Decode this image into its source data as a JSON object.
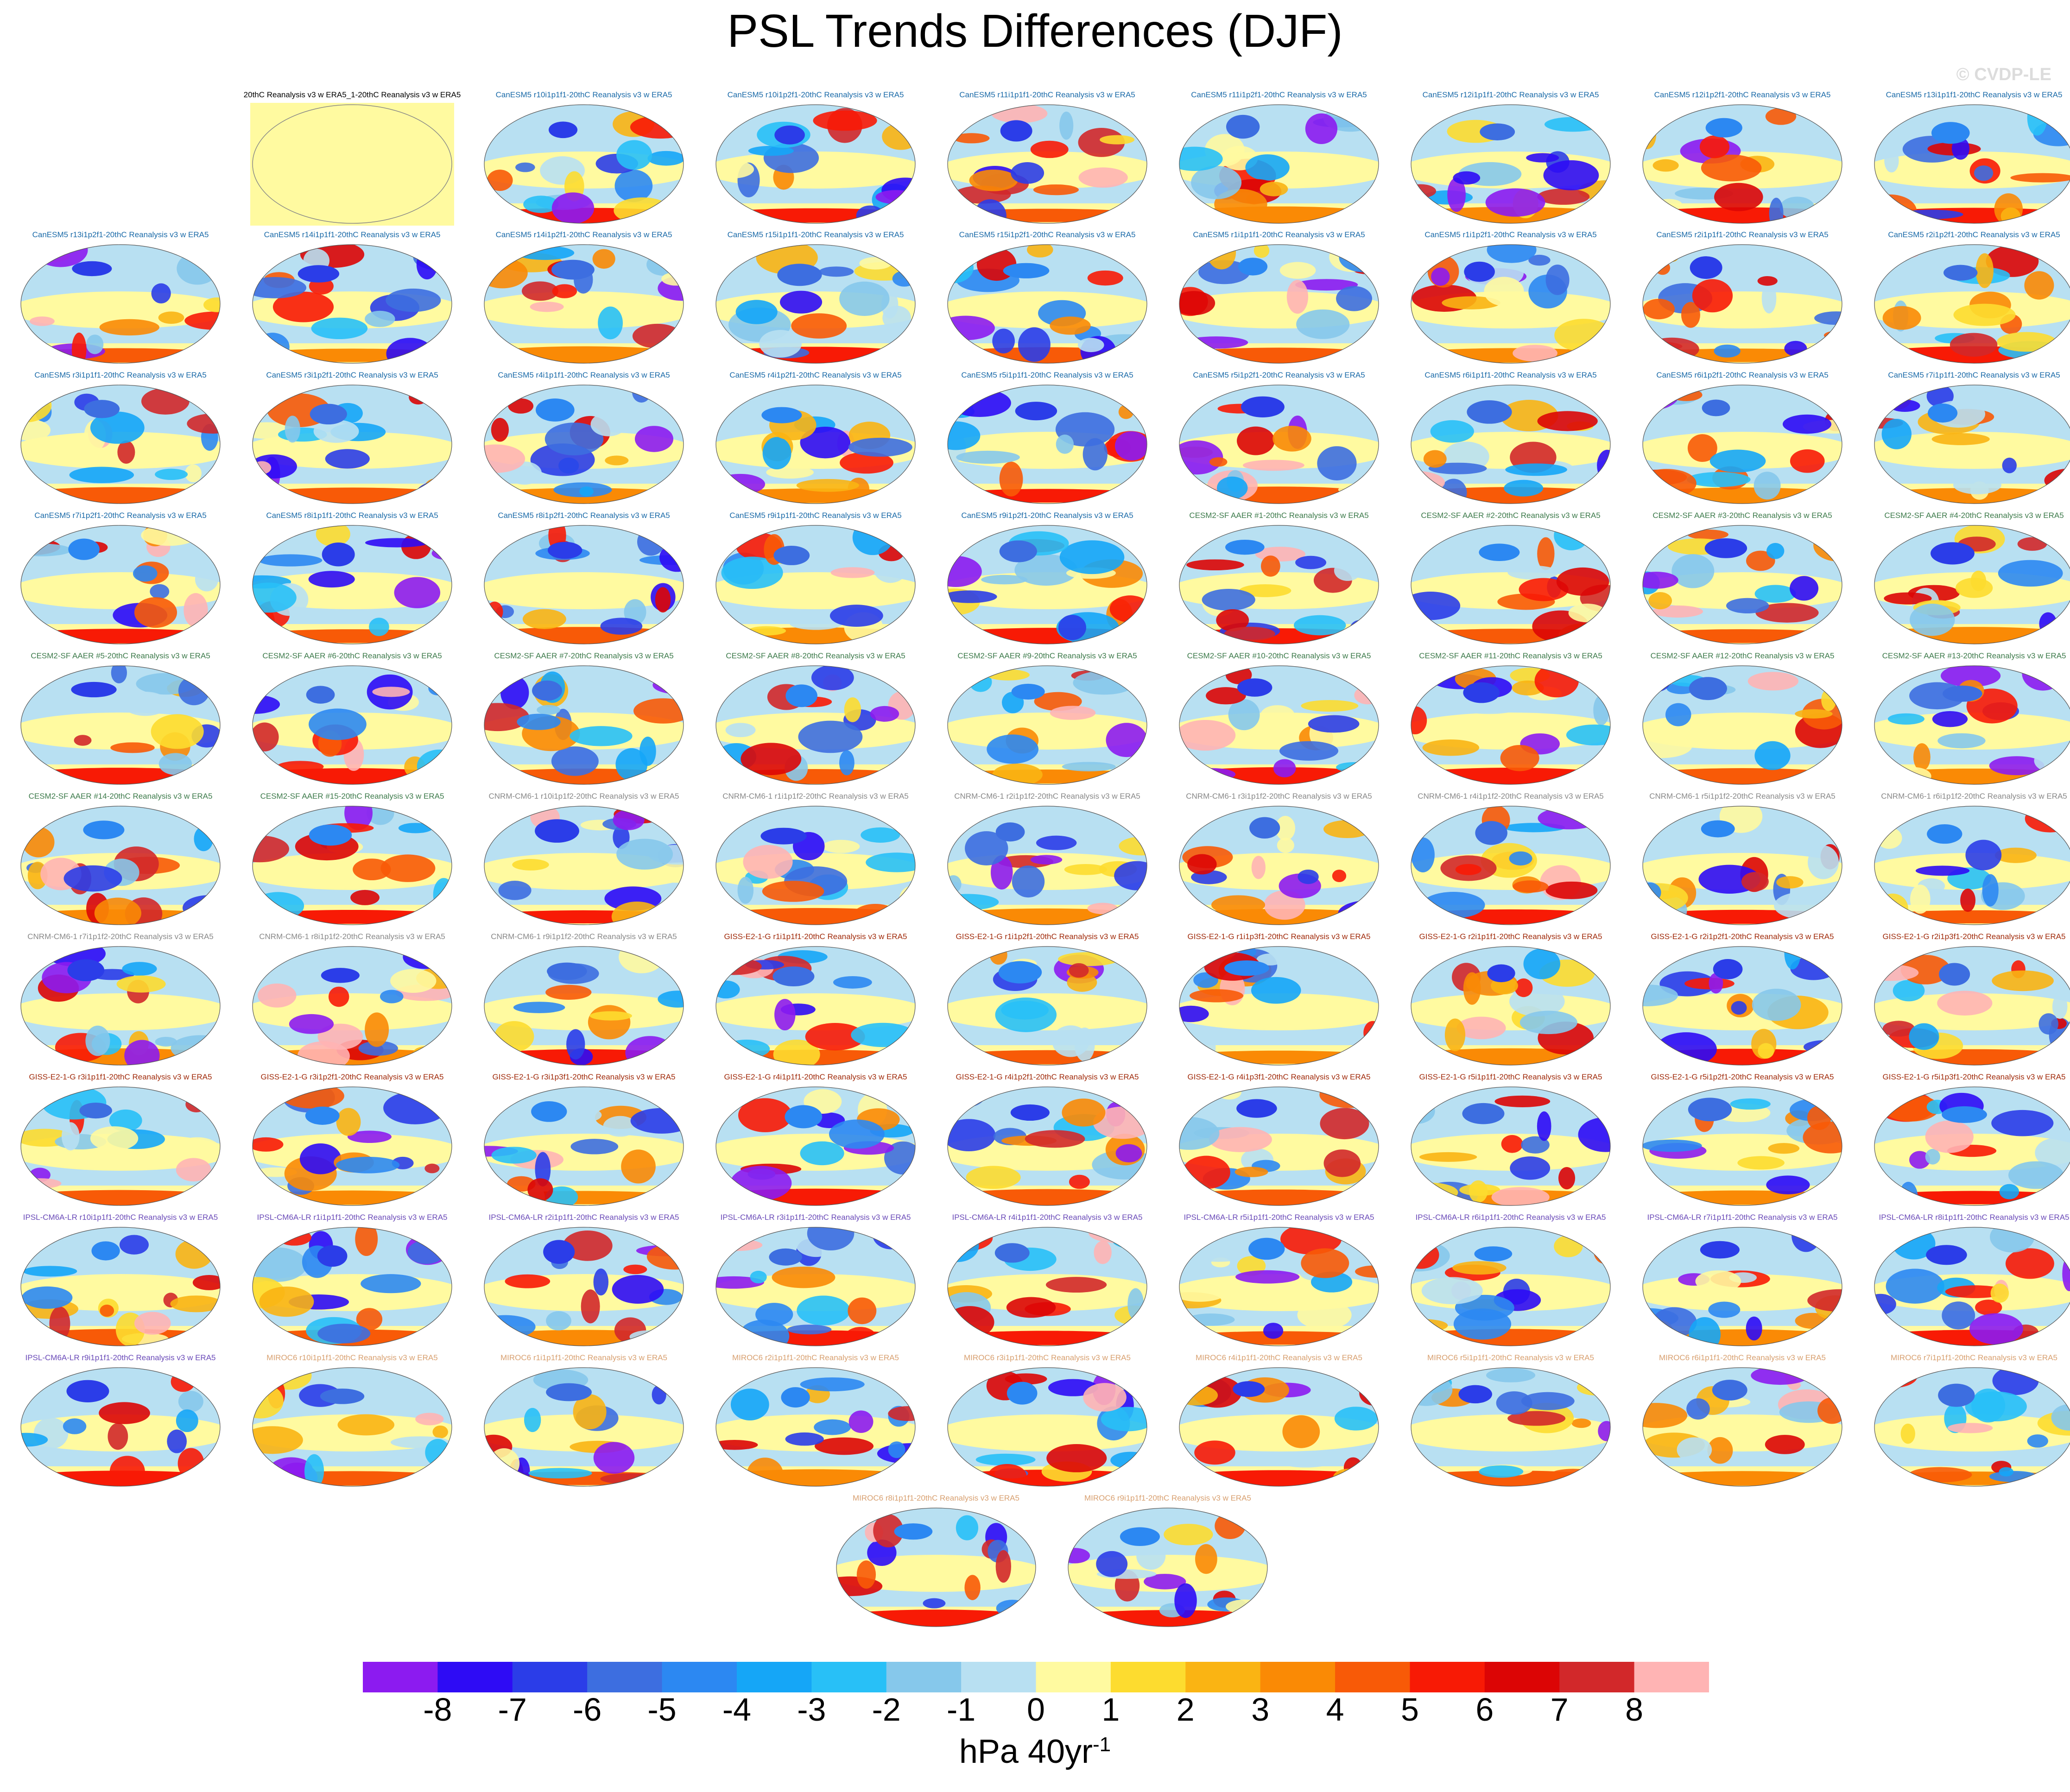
{
  "title": "PSL Trends Differences (DJF)",
  "watermark": "© CVDP-LE",
  "colorbar": {
    "ticks": [
      "-8",
      "-7",
      "-6",
      "-5",
      "-4",
      "-3",
      "-2",
      "-1",
      "0",
      "1",
      "2",
      "3",
      "4",
      "5",
      "6",
      "7",
      "8"
    ],
    "colors": [
      "#8c1bf0",
      "#2e0bf5",
      "#2b3de8",
      "#3d6ee0",
      "#2c88f2",
      "#15a6f7",
      "#28c0f7",
      "#86c8eb",
      "#b8e0f2",
      "#fffaa0",
      "#fddc2f",
      "#fab413",
      "#fa8a05",
      "#f85a07",
      "#f81a05",
      "#dc0505",
      "#d2282a",
      "#ffb4b4"
    ],
    "units": "hPa 40yr",
    "units_exponent": "-1"
  },
  "model_colors": {
    "obs": "#000000",
    "CanESM5": "#1a6aa8",
    "CESM2-SF AAER": "#3c7a4a",
    "CNRM-CM6-1": "#888888",
    "GISS-E2-1-G": "#a02a0a",
    "IPSL-CM6A-LR": "#6a4ab8",
    "MIROC6": "#d8a070"
  },
  "panels": [
    {
      "label": "20thC Reanalysis v3 w ERA5_1-20thC Reanalysis v3 w ERA5",
      "model": "obs",
      "blank": true
    },
    {
      "label": "CanESM5 r10i1p1f1-20thC Reanalysis v3 w ERA5",
      "model": "CanESM5"
    },
    {
      "label": "CanESM5 r10i1p2f1-20thC Reanalysis v3 w ERA5",
      "model": "CanESM5"
    },
    {
      "label": "CanESM5 r11i1p1f1-20thC Reanalysis v3 w ERA5",
      "model": "CanESM5"
    },
    {
      "label": "CanESM5 r11i1p2f1-20thC Reanalysis v3 w ERA5",
      "model": "CanESM5"
    },
    {
      "label": "CanESM5 r12i1p1f1-20thC Reanalysis v3 w ERA5",
      "model": "CanESM5"
    },
    {
      "label": "CanESM5 r12i1p2f1-20thC Reanalysis v3 w ERA5",
      "model": "CanESM5"
    },
    {
      "label": "CanESM5 r13i1p1f1-20thC Reanalysis v3 w ERA5",
      "model": "CanESM5"
    },
    {
      "label": "CanESM5 r13i1p2f1-20thC Reanalysis v3 w ERA5",
      "model": "CanESM5"
    },
    {
      "label": "CanESM5 r14i1p1f1-20thC Reanalysis v3 w ERA5",
      "model": "CanESM5"
    },
    {
      "label": "CanESM5 r14i1p2f1-20thC Reanalysis v3 w ERA5",
      "model": "CanESM5"
    },
    {
      "label": "CanESM5 r15i1p1f1-20thC Reanalysis v3 w ERA5",
      "model": "CanESM5"
    },
    {
      "label": "CanESM5 r15i1p2f1-20thC Reanalysis v3 w ERA5",
      "model": "CanESM5"
    },
    {
      "label": "CanESM5 r1i1p1f1-20thC Reanalysis v3 w ERA5",
      "model": "CanESM5"
    },
    {
      "label": "CanESM5 r1i1p2f1-20thC Reanalysis v3 w ERA5",
      "model": "CanESM5"
    },
    {
      "label": "CanESM5 r2i1p1f1-20thC Reanalysis v3 w ERA5",
      "model": "CanESM5"
    },
    {
      "label": "CanESM5 r2i1p2f1-20thC Reanalysis v3 w ERA5",
      "model": "CanESM5"
    },
    {
      "label": "CanESM5 r3i1p1f1-20thC Reanalysis v3 w ERA5",
      "model": "CanESM5"
    },
    {
      "label": "CanESM5 r3i1p2f1-20thC Reanalysis v3 w ERA5",
      "model": "CanESM5"
    },
    {
      "label": "CanESM5 r4i1p1f1-20thC Reanalysis v3 w ERA5",
      "model": "CanESM5"
    },
    {
      "label": "CanESM5 r4i1p2f1-20thC Reanalysis v3 w ERA5",
      "model": "CanESM5"
    },
    {
      "label": "CanESM5 r5i1p1f1-20thC Reanalysis v3 w ERA5",
      "model": "CanESM5"
    },
    {
      "label": "CanESM5 r5i1p2f1-20thC Reanalysis v3 w ERA5",
      "model": "CanESM5"
    },
    {
      "label": "CanESM5 r6i1p1f1-20thC Reanalysis v3 w ERA5",
      "model": "CanESM5"
    },
    {
      "label": "CanESM5 r6i1p2f1-20thC Reanalysis v3 w ERA5",
      "model": "CanESM5"
    },
    {
      "label": "CanESM5 r7i1p1f1-20thC Reanalysis v3 w ERA5",
      "model": "CanESM5"
    },
    {
      "label": "CanESM5 r7i1p2f1-20thC Reanalysis v3 w ERA5",
      "model": "CanESM5"
    },
    {
      "label": "CanESM5 r8i1p1f1-20thC Reanalysis v3 w ERA5",
      "model": "CanESM5"
    },
    {
      "label": "CanESM5 r8i1p2f1-20thC Reanalysis v3 w ERA5",
      "model": "CanESM5"
    },
    {
      "label": "CanESM5 r9i1p1f1-20thC Reanalysis v3 w ERA5",
      "model": "CanESM5"
    },
    {
      "label": "CanESM5 r9i1p2f1-20thC Reanalysis v3 w ERA5",
      "model": "CanESM5"
    },
    {
      "label": "CESM2-SF AAER #1-20thC Reanalysis v3 w ERA5",
      "model": "CESM2-SF AAER"
    },
    {
      "label": "CESM2-SF AAER #2-20thC Reanalysis v3 w ERA5",
      "model": "CESM2-SF AAER"
    },
    {
      "label": "CESM2-SF AAER #3-20thC Reanalysis v3 w ERA5",
      "model": "CESM2-SF AAER"
    },
    {
      "label": "CESM2-SF AAER #4-20thC Reanalysis v3 w ERA5",
      "model": "CESM2-SF AAER"
    },
    {
      "label": "CESM2-SF AAER #5-20thC Reanalysis v3 w ERA5",
      "model": "CESM2-SF AAER"
    },
    {
      "label": "CESM2-SF AAER #6-20thC Reanalysis v3 w ERA5",
      "model": "CESM2-SF AAER"
    },
    {
      "label": "CESM2-SF AAER #7-20thC Reanalysis v3 w ERA5",
      "model": "CESM2-SF AAER"
    },
    {
      "label": "CESM2-SF AAER #8-20thC Reanalysis v3 w ERA5",
      "model": "CESM2-SF AAER"
    },
    {
      "label": "CESM2-SF AAER #9-20thC Reanalysis v3 w ERA5",
      "model": "CESM2-SF AAER"
    },
    {
      "label": "CESM2-SF AAER #10-20thC Reanalysis v3 w ERA5",
      "model": "CESM2-SF AAER"
    },
    {
      "label": "CESM2-SF AAER #11-20thC Reanalysis v3 w ERA5",
      "model": "CESM2-SF AAER"
    },
    {
      "label": "CESM2-SF AAER #12-20thC Reanalysis v3 w ERA5",
      "model": "CESM2-SF AAER"
    },
    {
      "label": "CESM2-SF AAER #13-20thC Reanalysis v3 w ERA5",
      "model": "CESM2-SF AAER"
    },
    {
      "label": "CESM2-SF AAER #14-20thC Reanalysis v3 w ERA5",
      "model": "CESM2-SF AAER"
    },
    {
      "label": "CESM2-SF AAER #15-20thC Reanalysis v3 w ERA5",
      "model": "CESM2-SF AAER"
    },
    {
      "label": "CNRM-CM6-1 r10i1p1f2-20thC Reanalysis v3 w ERA5",
      "model": "CNRM-CM6-1"
    },
    {
      "label": "CNRM-CM6-1 r1i1p1f2-20thC Reanalysis v3 w ERA5",
      "model": "CNRM-CM6-1"
    },
    {
      "label": "CNRM-CM6-1 r2i1p1f2-20thC Reanalysis v3 w ERA5",
      "model": "CNRM-CM6-1"
    },
    {
      "label": "CNRM-CM6-1 r3i1p1f2-20thC Reanalysis v3 w ERA5",
      "model": "CNRM-CM6-1"
    },
    {
      "label": "CNRM-CM6-1 r4i1p1f2-20thC Reanalysis v3 w ERA5",
      "model": "CNRM-CM6-1"
    },
    {
      "label": "CNRM-CM6-1 r5i1p1f2-20thC Reanalysis v3 w ERA5",
      "model": "CNRM-CM6-1"
    },
    {
      "label": "CNRM-CM6-1 r6i1p1f2-20thC Reanalysis v3 w ERA5",
      "model": "CNRM-CM6-1"
    },
    {
      "label": "CNRM-CM6-1 r7i1p1f2-20thC Reanalysis v3 w ERA5",
      "model": "CNRM-CM6-1"
    },
    {
      "label": "CNRM-CM6-1 r8i1p1f2-20thC Reanalysis v3 w ERA5",
      "model": "CNRM-CM6-1"
    },
    {
      "label": "CNRM-CM6-1 r9i1p1f2-20thC Reanalysis v3 w ERA5",
      "model": "CNRM-CM6-1"
    },
    {
      "label": "GISS-E2-1-G r1i1p1f1-20thC Reanalysis v3 w ERA5",
      "model": "GISS-E2-1-G"
    },
    {
      "label": "GISS-E2-1-G r1i1p2f1-20thC Reanalysis v3 w ERA5",
      "model": "GISS-E2-1-G"
    },
    {
      "label": "GISS-E2-1-G r1i1p3f1-20thC Reanalysis v3 w ERA5",
      "model": "GISS-E2-1-G"
    },
    {
      "label": "GISS-E2-1-G r2i1p1f1-20thC Reanalysis v3 w ERA5",
      "model": "GISS-E2-1-G"
    },
    {
      "label": "GISS-E2-1-G r2i1p2f1-20thC Reanalysis v3 w ERA5",
      "model": "GISS-E2-1-G"
    },
    {
      "label": "GISS-E2-1-G r2i1p3f1-20thC Reanalysis v3 w ERA5",
      "model": "GISS-E2-1-G"
    },
    {
      "label": "GISS-E2-1-G r3i1p1f1-20thC Reanalysis v3 w ERA5",
      "model": "GISS-E2-1-G"
    },
    {
      "label": "GISS-E2-1-G r3i1p2f1-20thC Reanalysis v3 w ERA5",
      "model": "GISS-E2-1-G"
    },
    {
      "label": "GISS-E2-1-G r3i1p3f1-20thC Reanalysis v3 w ERA5",
      "model": "GISS-E2-1-G"
    },
    {
      "label": "GISS-E2-1-G r4i1p1f1-20thC Reanalysis v3 w ERA5",
      "model": "GISS-E2-1-G"
    },
    {
      "label": "GISS-E2-1-G r4i1p2f1-20thC Reanalysis v3 w ERA5",
      "model": "GISS-E2-1-G"
    },
    {
      "label": "GISS-E2-1-G r4i1p3f1-20thC Reanalysis v3 w ERA5",
      "model": "GISS-E2-1-G"
    },
    {
      "label": "GISS-E2-1-G r5i1p1f1-20thC Reanalysis v3 w ERA5",
      "model": "GISS-E2-1-G"
    },
    {
      "label": "GISS-E2-1-G r5i1p2f1-20thC Reanalysis v3 w ERA5",
      "model": "GISS-E2-1-G"
    },
    {
      "label": "GISS-E2-1-G r5i1p3f1-20thC Reanalysis v3 w ERA5",
      "model": "GISS-E2-1-G"
    },
    {
      "label": "IPSL-CM6A-LR r10i1p1f1-20thC Reanalysis v3 w ERA5",
      "model": "IPSL-CM6A-LR"
    },
    {
      "label": "IPSL-CM6A-LR r1i1p1f1-20thC Reanalysis v3 w ERA5",
      "model": "IPSL-CM6A-LR"
    },
    {
      "label": "IPSL-CM6A-LR r2i1p1f1-20thC Reanalysis v3 w ERA5",
      "model": "IPSL-CM6A-LR"
    },
    {
      "label": "IPSL-CM6A-LR r3i1p1f1-20thC Reanalysis v3 w ERA5",
      "model": "IPSL-CM6A-LR"
    },
    {
      "label": "IPSL-CM6A-LR r4i1p1f1-20thC Reanalysis v3 w ERA5",
      "model": "IPSL-CM6A-LR"
    },
    {
      "label": "IPSL-CM6A-LR r5i1p1f1-20thC Reanalysis v3 w ERA5",
      "model": "IPSL-CM6A-LR"
    },
    {
      "label": "IPSL-CM6A-LR r6i1p1f1-20thC Reanalysis v3 w ERA5",
      "model": "IPSL-CM6A-LR"
    },
    {
      "label": "IPSL-CM6A-LR r7i1p1f1-20thC Reanalysis v3 w ERA5",
      "model": "IPSL-CM6A-LR"
    },
    {
      "label": "IPSL-CM6A-LR r8i1p1f1-20thC Reanalysis v3 w ERA5",
      "model": "IPSL-CM6A-LR"
    },
    {
      "label": "IPSL-CM6A-LR r9i1p1f1-20thC Reanalysis v3 w ERA5",
      "model": "IPSL-CM6A-LR"
    },
    {
      "label": "MIROC6 r10i1p1f1-20thC Reanalysis v3 w ERA5",
      "model": "MIROC6"
    },
    {
      "label": "MIROC6 r1i1p1f1-20thC Reanalysis v3 w ERA5",
      "model": "MIROC6"
    },
    {
      "label": "MIROC6 r2i1p1f1-20thC Reanalysis v3 w ERA5",
      "model": "MIROC6"
    },
    {
      "label": "MIROC6 r3i1p1f1-20thC Reanalysis v3 w ERA5",
      "model": "MIROC6"
    },
    {
      "label": "MIROC6 r4i1p1f1-20thC Reanalysis v3 w ERA5",
      "model": "MIROC6"
    },
    {
      "label": "MIROC6 r5i1p1f1-20thC Reanalysis v3 w ERA5",
      "model": "MIROC6"
    },
    {
      "label": "MIROC6 r6i1p1f1-20thC Reanalysis v3 w ERA5",
      "model": "MIROC6"
    },
    {
      "label": "MIROC6 r7i1p1f1-20thC Reanalysis v3 w ERA5",
      "model": "MIROC6"
    },
    {
      "label": "MIROC6 r8i1p1f1-20thC Reanalysis v3 w ERA5",
      "model": "MIROC6"
    },
    {
      "label": "MIROC6 r9i1p1f1-20thC Reanalysis v3 w ERA5",
      "model": "MIROC6"
    }
  ]
}
